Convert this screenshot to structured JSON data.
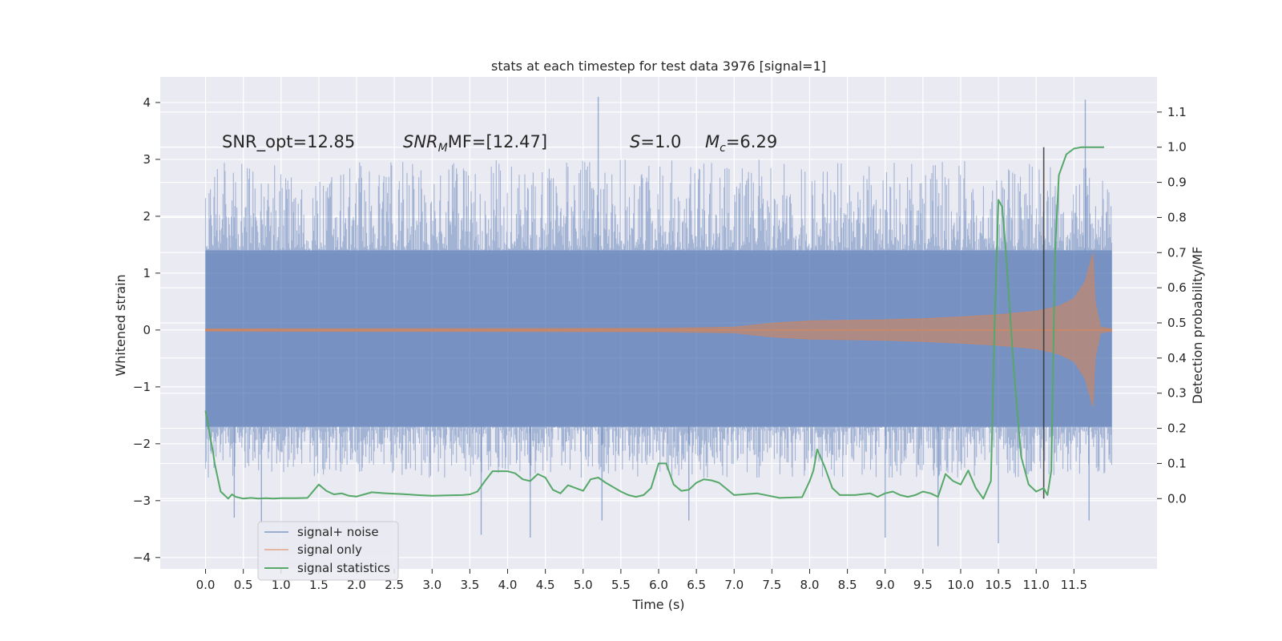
{
  "chart_data": {
    "type": "line",
    "title": "stats at each timestep for test data 3976 [signal=1]",
    "xlabel": "Time (s)",
    "ylabel": "Whitened strain",
    "ylabel_right": "Detection probability/MF",
    "xlim": [
      -0.6,
      12.6
    ],
    "ylim": [
      -4.2,
      4.45
    ],
    "ylim_right": [
      -0.2,
      1.2
    ],
    "x_ticks": [
      0.0,
      0.5,
      1.0,
      1.5,
      2.0,
      2.5,
      3.0,
      3.5,
      4.0,
      4.5,
      5.0,
      5.5,
      6.0,
      6.5,
      7.0,
      7.5,
      8.0,
      8.5,
      9.0,
      9.5,
      10.0,
      10.5,
      11.0,
      11.5
    ],
    "x_tick_labels": [
      "0.0",
      "0.5",
      "1.0",
      "1.5",
      "2.0",
      "2.5",
      "3.0",
      "3.5",
      "4.0",
      "4.5",
      "5.0",
      "5.5",
      "6.0",
      "6.5",
      "7.0",
      "7.5",
      "8.0",
      "8.5",
      "9.0",
      "9.5",
      "10.0",
      "10.5",
      "11.0",
      "11.5"
    ],
    "y_ticks": [
      -4,
      -3,
      -2,
      -1,
      0,
      1,
      2,
      3,
      4
    ],
    "y_tick_labels": [
      "−4",
      "−3",
      "−2",
      "−1",
      "0",
      "1",
      "2",
      "3",
      "4"
    ],
    "y_right_ticks": [
      0.0,
      0.1,
      0.2,
      0.3,
      0.4,
      0.5,
      0.6,
      0.7,
      0.8,
      0.9,
      1.0,
      1.1
    ],
    "y_right_tick_labels": [
      "0.0",
      "0.1",
      "0.2",
      "0.3",
      "0.4",
      "0.5",
      "0.6",
      "0.7",
      "0.8",
      "0.9",
      "1.0",
      "1.1"
    ],
    "grid": true,
    "series": [
      {
        "name": "signal+ noise",
        "color": "#4c72b0",
        "kind": "noise band",
        "x_range": [
          0.0,
          12.0
        ],
        "core_band": [
          -1.7,
          1.4
        ],
        "typical_extremes": [
          -2.6,
          3.0
        ],
        "notable_spikes": [
          {
            "x": 0.38,
            "y": -3.3
          },
          {
            "x": 0.74,
            "y": -3.4
          },
          {
            "x": 3.65,
            "y": -3.6
          },
          {
            "x": 4.3,
            "y": -3.65
          },
          {
            "x": 5.25,
            "y": -3.35
          },
          {
            "x": 5.2,
            "y": 4.1
          },
          {
            "x": 6.4,
            "y": -3.35
          },
          {
            "x": 9.0,
            "y": -3.65
          },
          {
            "x": 9.7,
            "y": -3.8
          },
          {
            "x": 10.5,
            "y": -3.75
          },
          {
            "x": 11.65,
            "y": 4.05
          },
          {
            "x": 11.7,
            "y": -3.35
          }
        ]
      },
      {
        "name": "signal only",
        "color": "#dd8452",
        "kind": "chirp envelope",
        "x": [
          0.0,
          6.0,
          7.0,
          7.5,
          8.0,
          8.5,
          9.0,
          9.5,
          10.0,
          10.5,
          11.0,
          11.3,
          11.5,
          11.65,
          11.75,
          11.78,
          11.85,
          12.0
        ],
        "amplitude": [
          0.02,
          0.03,
          0.05,
          0.12,
          0.16,
          0.17,
          0.18,
          0.2,
          0.23,
          0.27,
          0.33,
          0.42,
          0.55,
          0.85,
          1.35,
          0.5,
          0.05,
          0.02
        ]
      },
      {
        "name": "signal statistics",
        "color": "#55a868",
        "axis": "right",
        "x": [
          0.0,
          0.1,
          0.12,
          0.2,
          0.25,
          0.3,
          0.35,
          0.4,
          0.5,
          0.6,
          0.7,
          0.8,
          0.9,
          1.0,
          1.2,
          1.35,
          1.5,
          1.6,
          1.7,
          1.8,
          1.9,
          2.0,
          2.2,
          2.4,
          2.6,
          2.8,
          3.0,
          3.2,
          3.4,
          3.5,
          3.6,
          3.7,
          3.8,
          4.0,
          4.1,
          4.2,
          4.3,
          4.4,
          4.5,
          4.6,
          4.7,
          4.8,
          4.9,
          5.0,
          5.1,
          5.2,
          5.3,
          5.5,
          5.6,
          5.7,
          5.8,
          5.9,
          6.0,
          6.1,
          6.2,
          6.3,
          6.4,
          6.5,
          6.6,
          6.7,
          6.8,
          7.0,
          7.3,
          7.6,
          7.9,
          8.0,
          8.05,
          8.1,
          8.2,
          8.3,
          8.4,
          8.6,
          8.8,
          8.9,
          9.0,
          9.1,
          9.2,
          9.3,
          9.4,
          9.5,
          9.6,
          9.7,
          9.8,
          9.9,
          10.0,
          10.1,
          10.2,
          10.3,
          10.4,
          10.45,
          10.5,
          10.55,
          10.6,
          10.7,
          10.8,
          10.9,
          11.0,
          11.1,
          11.15,
          11.2,
          11.25,
          11.3,
          11.35,
          11.4,
          11.5,
          11.6,
          11.7,
          11.8,
          11.9
        ],
        "values": [
          0.25,
          0.13,
          0.1,
          0.02,
          0.01,
          0.0,
          0.012,
          0.005,
          0.0,
          0.002,
          0.0,
          0.001,
          0.0,
          0.001,
          0.001,
          0.002,
          0.04,
          0.022,
          0.012,
          0.015,
          0.008,
          0.006,
          0.018,
          0.015,
          0.013,
          0.01,
          0.008,
          0.009,
          0.01,
          0.012,
          0.02,
          0.05,
          0.078,
          0.078,
          0.072,
          0.055,
          0.05,
          0.07,
          0.06,
          0.025,
          0.015,
          0.038,
          0.03,
          0.022,
          0.055,
          0.06,
          0.045,
          0.02,
          0.01,
          0.005,
          0.01,
          0.03,
          0.1,
          0.1,
          0.04,
          0.022,
          0.025,
          0.045,
          0.055,
          0.052,
          0.045,
          0.01,
          0.015,
          0.002,
          0.004,
          0.05,
          0.08,
          0.14,
          0.09,
          0.03,
          0.01,
          0.01,
          0.015,
          0.005,
          0.015,
          0.02,
          0.01,
          0.005,
          0.01,
          0.02,
          0.015,
          0.005,
          0.07,
          0.05,
          0.04,
          0.08,
          0.03,
          0.0,
          0.05,
          0.5,
          0.85,
          0.83,
          0.7,
          0.38,
          0.12,
          0.04,
          0.02,
          0.03,
          0.01,
          0.08,
          0.7,
          0.92,
          0.95,
          0.98,
          0.996,
          1.0,
          1.0,
          1.0,
          1.0
        ]
      }
    ],
    "vline_x": 11.1,
    "annotations": [
      {
        "text": "SNR_opt=12.85",
        "x": 0.2,
        "y": 3.2
      },
      {
        "text": "MF=[12.47]",
        "math_prefix": "SNR",
        "math_sub": "M",
        "x": 2.6,
        "y": 3.2
      },
      {
        "text": "=1.0",
        "math_prefix": "S",
        "x": 5.6,
        "y": 3.2
      },
      {
        "text": "=6.29",
        "math_prefix": "M",
        "math_sub": "c",
        "x": 6.6,
        "y": 3.2
      }
    ],
    "legend_position": "lower-left"
  }
}
